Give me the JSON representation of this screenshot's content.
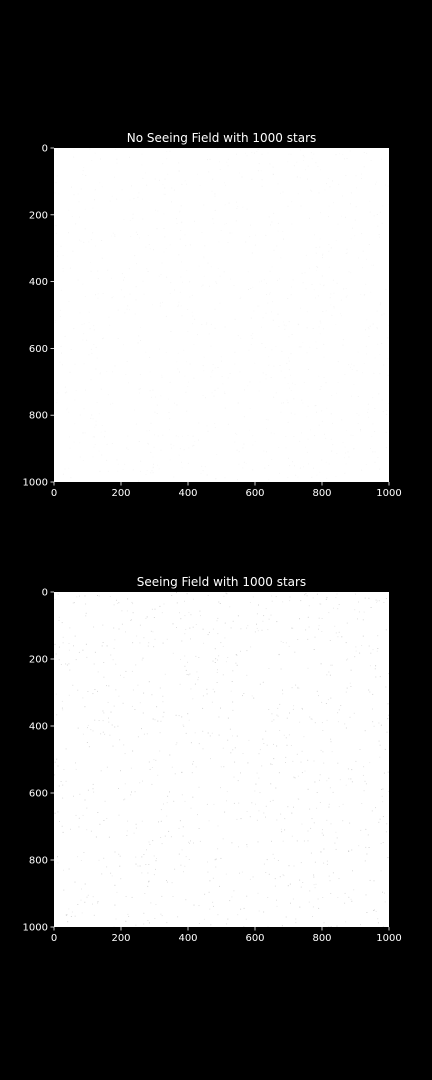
{
  "figure": {
    "background": "#000000",
    "foreground": "#ffffff"
  },
  "chart_data": [
    {
      "type": "heatmap",
      "title": "No Seeing Field with 1000 stars",
      "xlabel": "",
      "ylabel": "",
      "xlim": [
        0,
        1000
      ],
      "ylim": [
        1000,
        0
      ],
      "xticks": [
        0,
        200,
        400,
        600,
        800,
        1000
      ],
      "yticks": [
        0,
        200,
        400,
        600,
        800,
        1000
      ],
      "image_background": "#ffffff",
      "image_description_values": {
        "n_stars": 1000,
        "star_alpha": 0.05
      }
    },
    {
      "type": "heatmap",
      "title": "Seeing Field with 1000 stars",
      "xlabel": "",
      "ylabel": "",
      "xlim": [
        0,
        1000
      ],
      "ylim": [
        1000,
        0
      ],
      "xticks": [
        0,
        200,
        400,
        600,
        800,
        1000
      ],
      "yticks": [
        0,
        200,
        400,
        600,
        800,
        1000
      ],
      "image_background": "#ffffff",
      "image_description_values": {
        "n_stars": 1000,
        "star_alpha": 0.18
      }
    }
  ]
}
